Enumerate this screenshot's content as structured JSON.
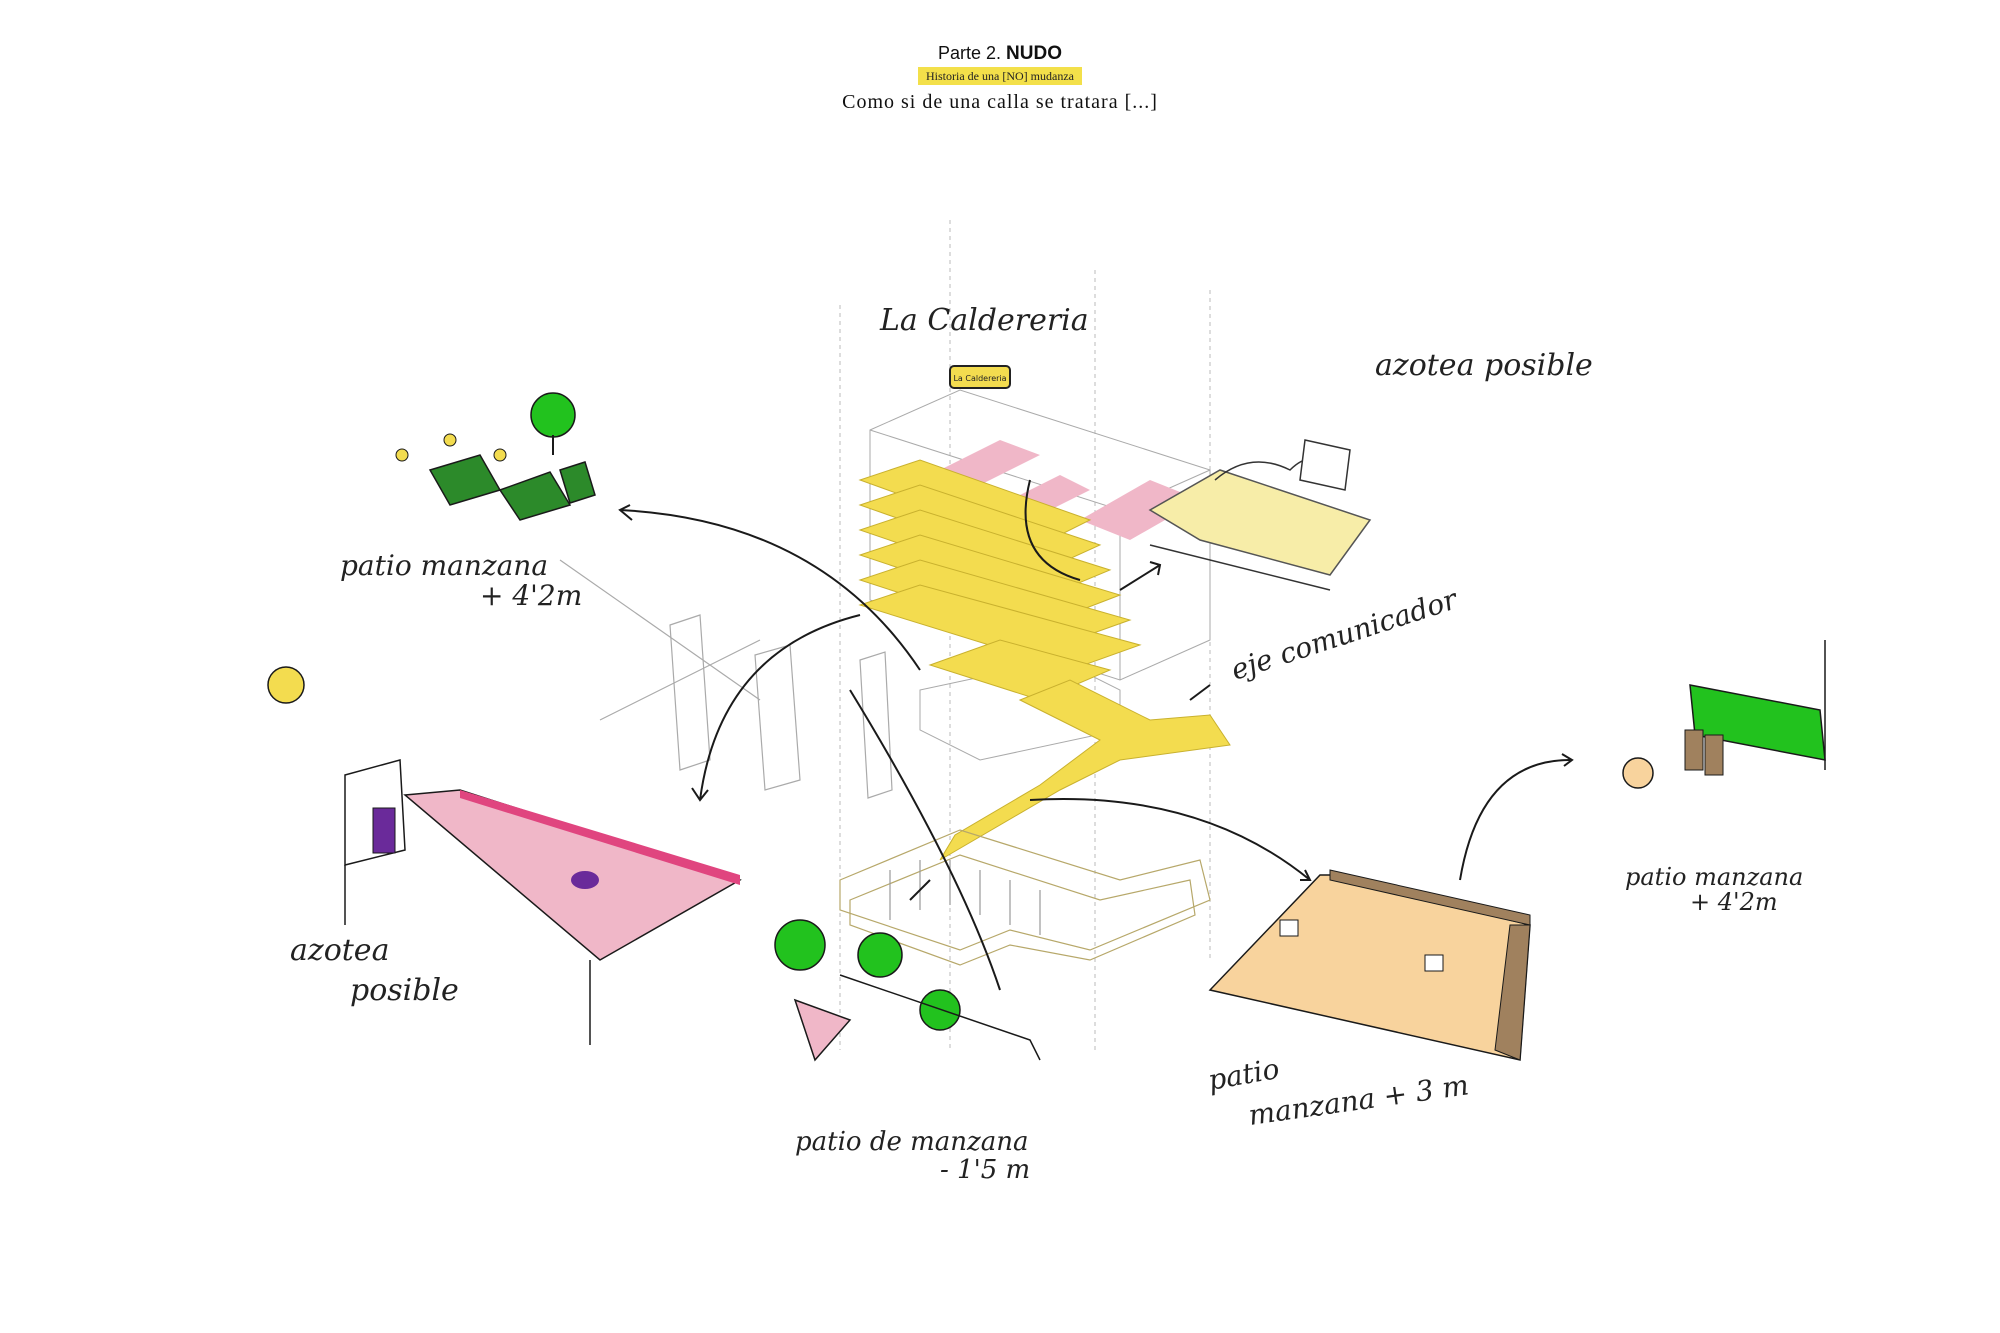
{
  "header": {
    "part_prefix": "Parte 2.",
    "part_title": "NUDO",
    "badge": "Historia de una [NO] mudanza",
    "subtitle": "Como si de una calla se tratara [...]"
  },
  "labels": {
    "building_name": "La Caldereria",
    "sign_text": "La Caldereria",
    "rooftop_right": "azotea posible",
    "rooftop_left_line1": "azotea",
    "rooftop_left_line2": "posible",
    "axis": "eje comunicador",
    "patio_top_left_line1": "patio manzana",
    "patio_top_left_line2": "+ 4'2m",
    "patio_right_line1": "patio manzana",
    "patio_right_line2": "+ 4'2m",
    "patio_bottom_right_line1": "patio",
    "patio_bottom_right_line2": "manzana + 3 m",
    "patio_bottom_line1": "patio de manzana",
    "patio_bottom_line2": "- 1'5 m"
  },
  "colors": {
    "yellow": "#f3dc4f",
    "pink": "#f0b7c8",
    "magenta": "#e0457f",
    "green": "#22c21e",
    "dark_green": "#2c8a2a",
    "sand": "#f8d39d",
    "brown": "#a0815e",
    "purple": "#6a2a9a",
    "ink": "#1a1a1a"
  }
}
